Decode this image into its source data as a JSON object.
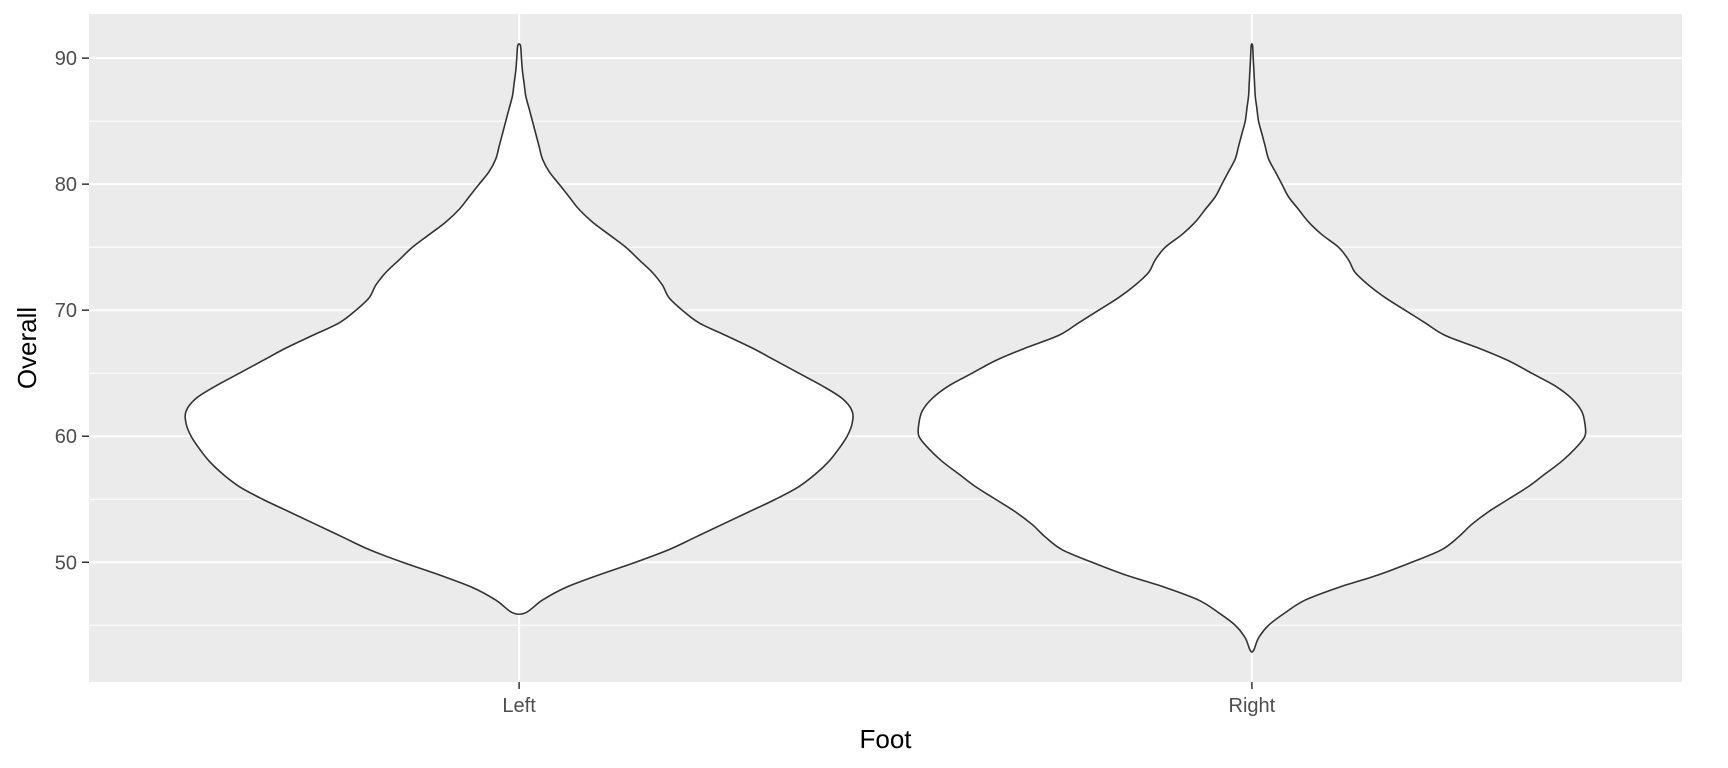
{
  "chart_data": {
    "type": "violin",
    "xlabel": "Foot",
    "ylabel": "Overall",
    "categories": [
      "Left",
      "Right"
    ],
    "ylim": [
      40.5,
      93.5
    ],
    "y_ticks": [
      50,
      60,
      70,
      80,
      90
    ],
    "y_minor_ticks": [
      45,
      55,
      65,
      75,
      85
    ],
    "grid": true,
    "colors": {
      "panel": "#EBEBEB",
      "grid": "#FFFFFF",
      "fill": "#FFFFFF",
      "outline": "#333333",
      "tick_text": "#4D4D4D",
      "axis_title": "#000000"
    },
    "violins": [
      {
        "category": "Left",
        "min": 46,
        "max": 91,
        "density_profile": [
          [
            46,
            0.02
          ],
          [
            47,
            0.07
          ],
          [
            48,
            0.14
          ],
          [
            49,
            0.24
          ],
          [
            50,
            0.35
          ],
          [
            51,
            0.45
          ],
          [
            52,
            0.53
          ],
          [
            53,
            0.61
          ],
          [
            54,
            0.69
          ],
          [
            55,
            0.77
          ],
          [
            56,
            0.84
          ],
          [
            57,
            0.89
          ],
          [
            58,
            0.93
          ],
          [
            59,
            0.96
          ],
          [
            60,
            0.985
          ],
          [
            61,
            1.0
          ],
          [
            62,
            1.0
          ],
          [
            63,
            0.97
          ],
          [
            64,
            0.91
          ],
          [
            65,
            0.84
          ],
          [
            66,
            0.77
          ],
          [
            67,
            0.7
          ],
          [
            68,
            0.62
          ],
          [
            69,
            0.54
          ],
          [
            70,
            0.49
          ],
          [
            71,
            0.45
          ],
          [
            72,
            0.43
          ],
          [
            73,
            0.4
          ],
          [
            74,
            0.36
          ],
          [
            75,
            0.32
          ],
          [
            76,
            0.27
          ],
          [
            77,
            0.22
          ],
          [
            78,
            0.18
          ],
          [
            79,
            0.15
          ],
          [
            80,
            0.12
          ],
          [
            81,
            0.09
          ],
          [
            82,
            0.07
          ],
          [
            83,
            0.06
          ],
          [
            84,
            0.05
          ],
          [
            85,
            0.04
          ],
          [
            86,
            0.03
          ],
          [
            87,
            0.02
          ],
          [
            88,
            0.015
          ],
          [
            89,
            0.01
          ],
          [
            90,
            0.007
          ],
          [
            91,
            0.004
          ]
        ]
      },
      {
        "category": "Right",
        "min": 43,
        "max": 91,
        "density_profile": [
          [
            43,
            0.005
          ],
          [
            44,
            0.02
          ],
          [
            45,
            0.05
          ],
          [
            46,
            0.1
          ],
          [
            47,
            0.16
          ],
          [
            48,
            0.26
          ],
          [
            49,
            0.38
          ],
          [
            50,
            0.48
          ],
          [
            51,
            0.57
          ],
          [
            52,
            0.62
          ],
          [
            53,
            0.66
          ],
          [
            54,
            0.71
          ],
          [
            55,
            0.77
          ],
          [
            56,
            0.83
          ],
          [
            57,
            0.88
          ],
          [
            58,
            0.93
          ],
          [
            59,
            0.97
          ],
          [
            60,
            1.0
          ],
          [
            61,
            1.0
          ],
          [
            62,
            0.99
          ],
          [
            63,
            0.96
          ],
          [
            64,
            0.91
          ],
          [
            65,
            0.84
          ],
          [
            66,
            0.77
          ],
          [
            67,
            0.68
          ],
          [
            68,
            0.58
          ],
          [
            69,
            0.52
          ],
          [
            70,
            0.46
          ],
          [
            71,
            0.4
          ],
          [
            72,
            0.35
          ],
          [
            73,
            0.31
          ],
          [
            74,
            0.29
          ],
          [
            75,
            0.26
          ],
          [
            76,
            0.21
          ],
          [
            77,
            0.17
          ],
          [
            78,
            0.14
          ],
          [
            79,
            0.11
          ],
          [
            80,
            0.09
          ],
          [
            81,
            0.07
          ],
          [
            82,
            0.05
          ],
          [
            83,
            0.04
          ],
          [
            84,
            0.03
          ],
          [
            85,
            0.02
          ],
          [
            86,
            0.015
          ],
          [
            87,
            0.01
          ],
          [
            88,
            0.008
          ],
          [
            89,
            0.006
          ],
          [
            90,
            0.004
          ],
          [
            91,
            0.002
          ]
        ]
      }
    ]
  }
}
